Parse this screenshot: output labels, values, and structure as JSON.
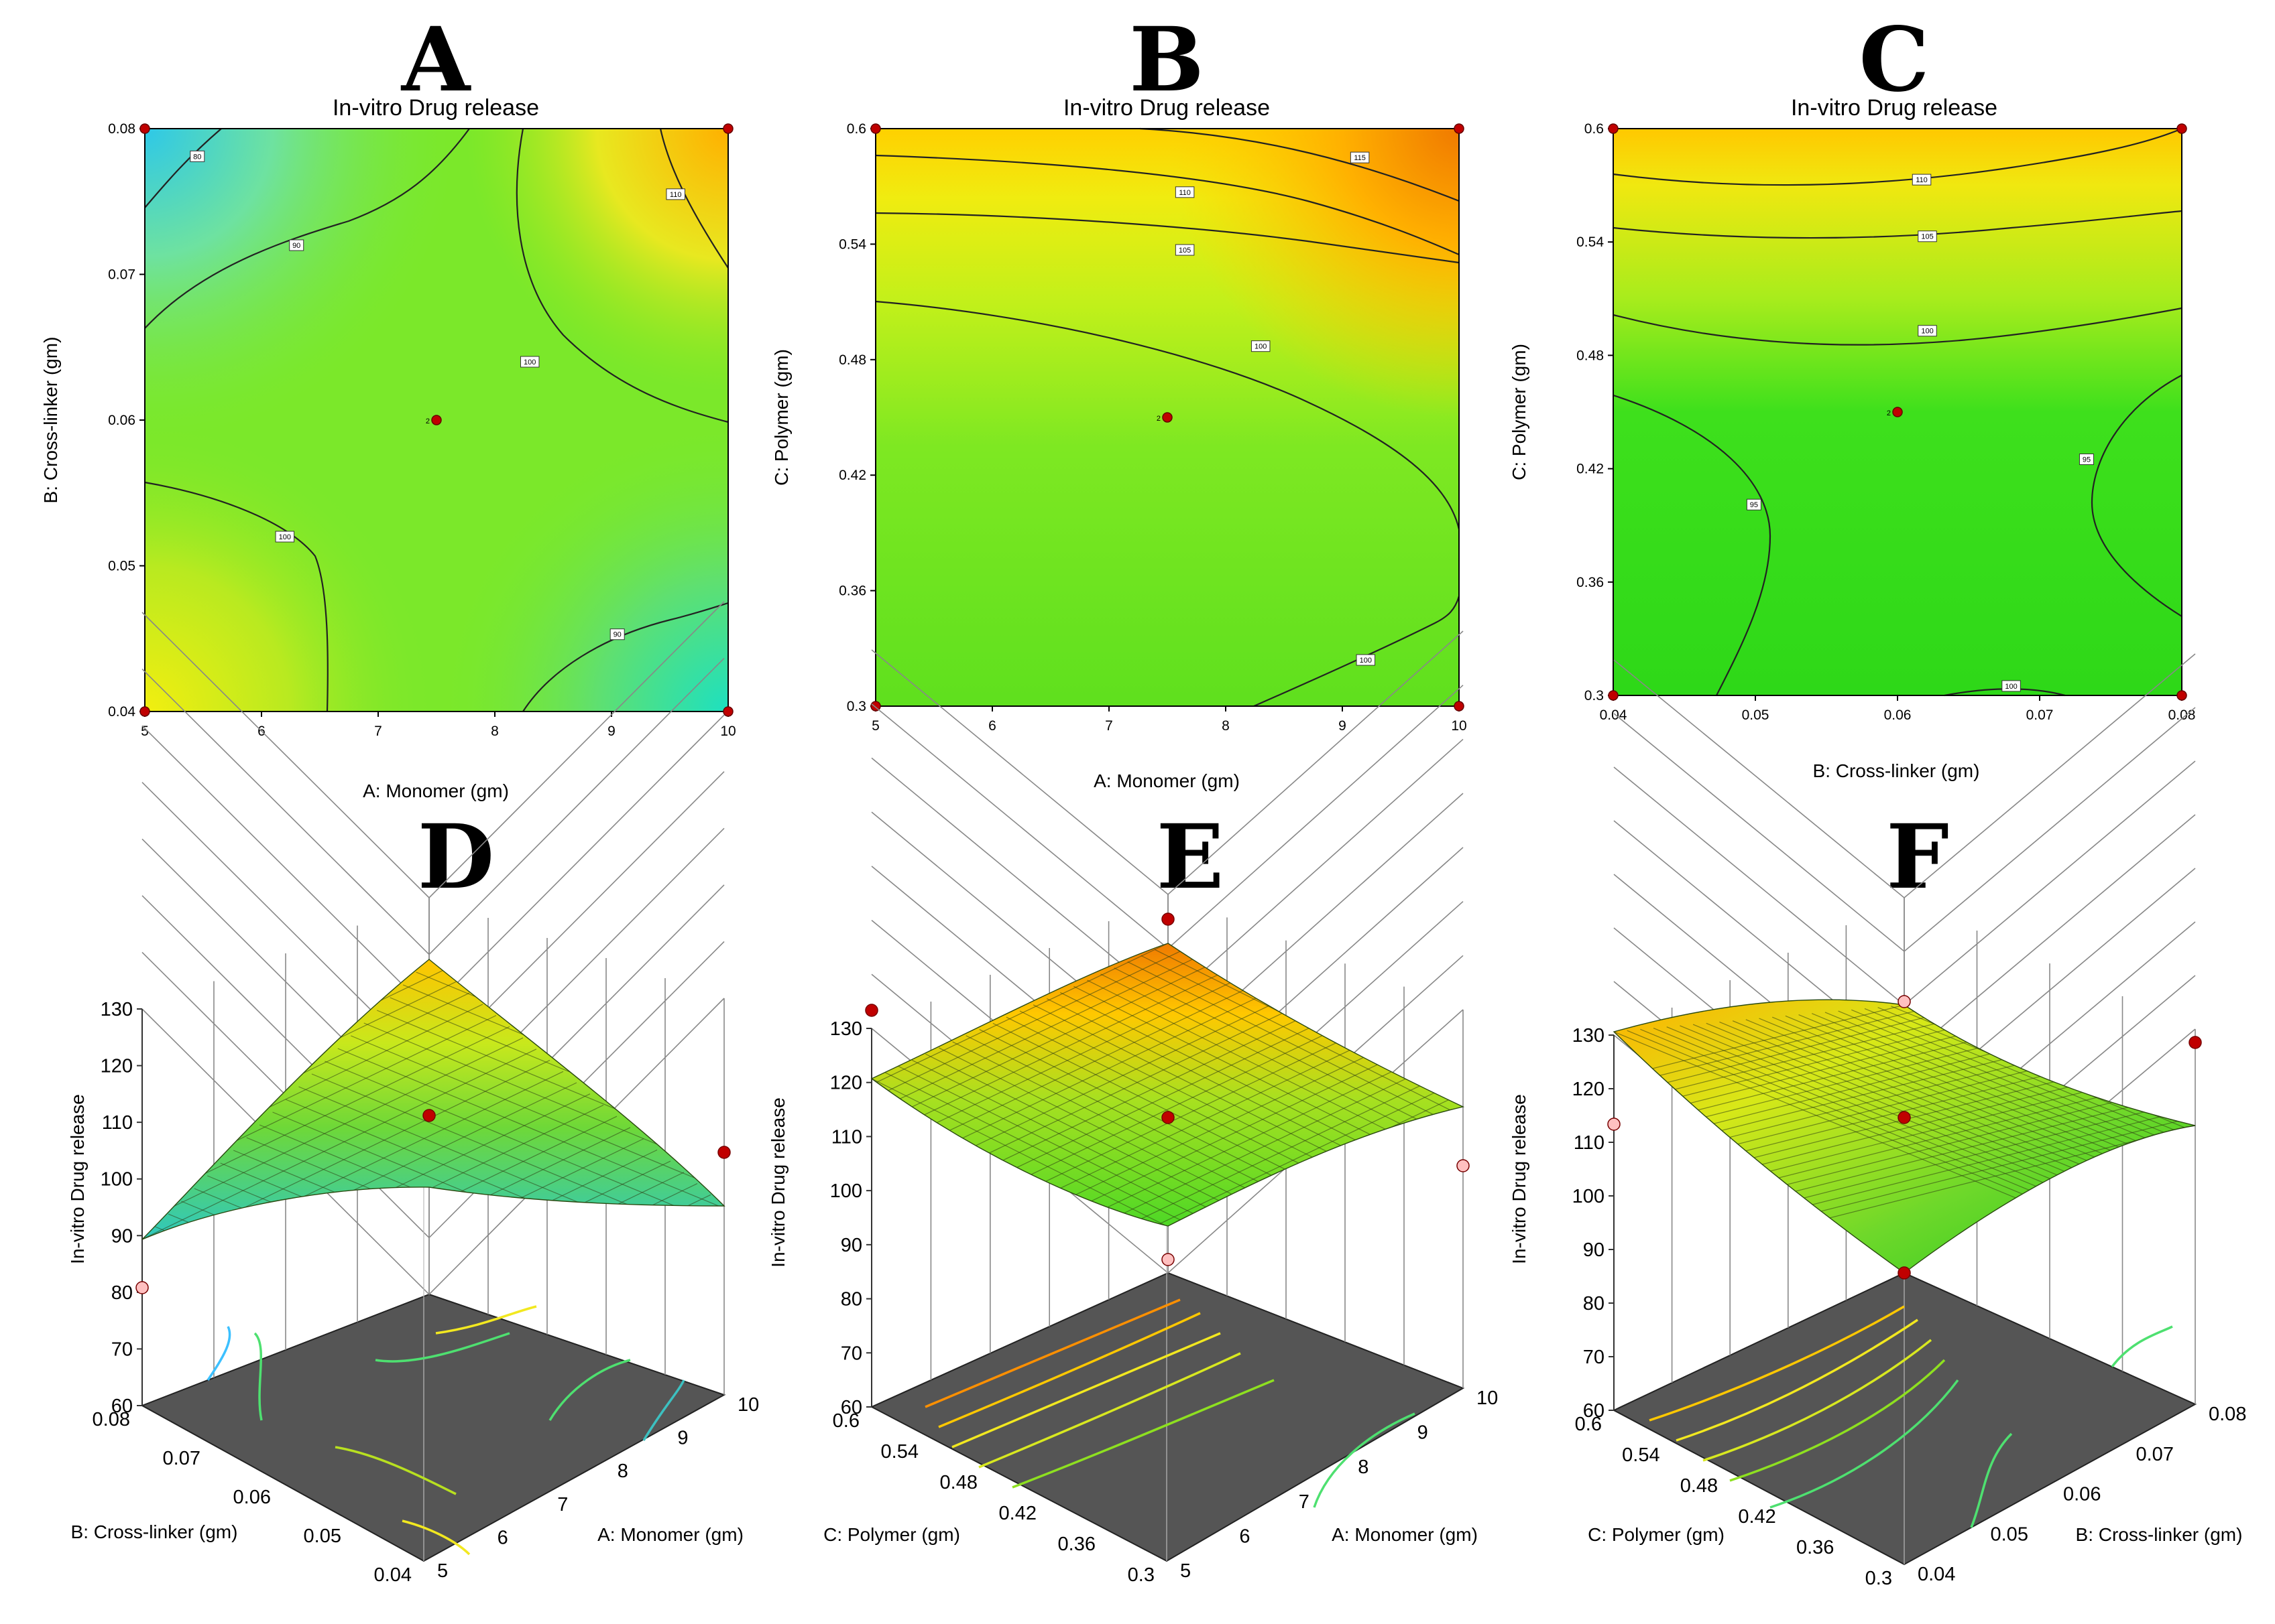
{
  "figure": {
    "title": "In-vitro Drug release",
    "panels": [
      "A",
      "B",
      "C",
      "D",
      "E",
      "F"
    ]
  },
  "chart_data": [
    {
      "panel": "A",
      "type": "heatmap",
      "title": "In-vitro Drug release",
      "xlabel": "A: Monomer (gm)",
      "ylabel": "B: Cross-linker (gm)",
      "xlim": [
        5,
        10
      ],
      "ylim": [
        0.04,
        0.08
      ],
      "xticks": [
        "5",
        "6",
        "7",
        "8",
        "9",
        "10"
      ],
      "yticks": [
        "0.04",
        "0.05",
        "0.06",
        "0.07",
        "0.08"
      ],
      "contour_labels": [
        {
          "text": "80",
          "x": 5.45,
          "y": 0.0781
        },
        {
          "text": "90",
          "x": 6.3,
          "y": 0.072
        },
        {
          "text": "110",
          "x": 9.55,
          "y": 0.0755
        },
        {
          "text": "100",
          "x": 8.3,
          "y": 0.064
        },
        {
          "text": "100",
          "x": 6.2,
          "y": 0.052
        },
        {
          "text": "90",
          "x": 9.05,
          "y": 0.0453
        }
      ],
      "design_points": [
        {
          "x": 5,
          "y": 0.08,
          "label": ""
        },
        {
          "x": 10,
          "y": 0.08,
          "label": ""
        },
        {
          "x": 7.5,
          "y": 0.06,
          "label": "2"
        },
        {
          "x": 5,
          "y": 0.04,
          "label": ""
        },
        {
          "x": 10,
          "y": 0.04,
          "label": ""
        }
      ]
    },
    {
      "panel": "B",
      "type": "heatmap",
      "title": "In-vitro Drug release",
      "xlabel": "A: Monomer (gm)",
      "ylabel": "C: Polymer  (gm)",
      "xlim": [
        5,
        10
      ],
      "ylim": [
        0.3,
        0.6
      ],
      "xticks": [
        "5",
        "6",
        "7",
        "8",
        "9",
        "10"
      ],
      "yticks": [
        "0.3",
        "0.36",
        "0.42",
        "0.48",
        "0.54",
        "0.6"
      ],
      "contour_labels": [
        {
          "text": "115",
          "x": 9.15,
          "y": 0.585
        },
        {
          "text": "110",
          "x": 7.65,
          "y": 0.567
        },
        {
          "text": "105",
          "x": 7.65,
          "y": 0.537
        },
        {
          "text": "100",
          "x": 8.3,
          "y": 0.487
        },
        {
          "text": "100",
          "x": 9.2,
          "y": 0.324
        }
      ],
      "design_points": [
        {
          "x": 5,
          "y": 0.6,
          "label": ""
        },
        {
          "x": 10,
          "y": 0.6,
          "label": ""
        },
        {
          "x": 7.5,
          "y": 0.45,
          "label": "2"
        },
        {
          "x": 5,
          "y": 0.3,
          "label": ""
        },
        {
          "x": 10,
          "y": 0.3,
          "label": ""
        }
      ]
    },
    {
      "panel": "C",
      "type": "heatmap",
      "title": "In-vitro Drug release",
      "xlabel": "B: Cross-linker (gm)",
      "ylabel": "C: Polymer  (gm)",
      "xlim": [
        0.04,
        0.08
      ],
      "ylim": [
        0.3,
        0.6
      ],
      "xticks": [
        "0.04",
        "0.05",
        "0.06",
        "0.07",
        "0.08"
      ],
      "yticks": [
        "0.3",
        "0.36",
        "0.42",
        "0.48",
        "0.54",
        "0.6"
      ],
      "contour_labels": [
        {
          "text": "110",
          "x": 0.0617,
          "y": 0.573
        },
        {
          "text": "105",
          "x": 0.0621,
          "y": 0.543
        },
        {
          "text": "100",
          "x": 0.0621,
          "y": 0.493
        },
        {
          "text": "95",
          "x": 0.0499,
          "y": 0.401
        },
        {
          "text": "95",
          "x": 0.0733,
          "y": 0.425
        },
        {
          "text": "100",
          "x": 0.068,
          "y": 0.305
        }
      ],
      "design_points": [
        {
          "x": 0.04,
          "y": 0.6,
          "label": ""
        },
        {
          "x": 0.08,
          "y": 0.6,
          "label": ""
        },
        {
          "x": 0.06,
          "y": 0.45,
          "label": "2"
        },
        {
          "x": 0.04,
          "y": 0.3,
          "label": ""
        },
        {
          "x": 0.08,
          "y": 0.3,
          "label": ""
        }
      ]
    },
    {
      "panel": "D",
      "type": "surface",
      "zlabel": "In-vitro Drug release",
      "zticks": [
        "60",
        "70",
        "80",
        "90",
        "100",
        "110",
        "120",
        "130"
      ],
      "left_axis_label": "B: Cross-linker (gm)",
      "left_ticks": [
        "0.08",
        "0.07",
        "0.06",
        "0.05",
        "0.04"
      ],
      "right_axis_label": "A: Monomer (gm)",
      "right_ticks": [
        "5",
        "6",
        "7",
        "8",
        "9",
        "10"
      ]
    },
    {
      "panel": "E",
      "type": "surface",
      "zlabel": "In-vitro Drug release",
      "zticks": [
        "60",
        "70",
        "80",
        "90",
        "100",
        "110",
        "120",
        "130"
      ],
      "left_axis_label": "C: Polymer  (gm)",
      "left_ticks": [
        "0.6",
        "0.54",
        "0.48",
        "0.42",
        "0.36",
        "0.3"
      ],
      "right_axis_label": "A: Monomer (gm)",
      "right_ticks": [
        "5",
        "6",
        "7",
        "8",
        "9",
        "10"
      ]
    },
    {
      "panel": "F",
      "type": "surface",
      "zlabel": "In-vitro Drug release",
      "zticks": [
        "60",
        "70",
        "80",
        "90",
        "100",
        "110",
        "120",
        "130"
      ],
      "left_axis_label": "C: Polymer  (gm)",
      "left_ticks": [
        "0.6",
        "0.54",
        "0.48",
        "0.42",
        "0.36",
        "0.3"
      ],
      "right_axis_label": "B: Cross-linker (gm)",
      "right_ticks": [
        "0.04",
        "0.05",
        "0.06",
        "0.07",
        "0.08"
      ]
    }
  ]
}
